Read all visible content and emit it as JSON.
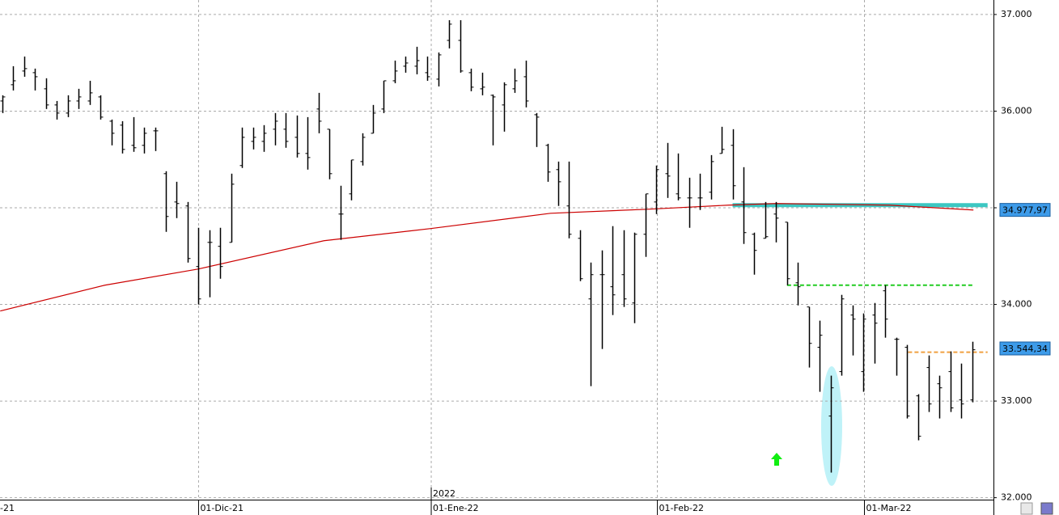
{
  "chart_data": {
    "type": "ohlc",
    "color": "#000000",
    "xlim": [
      -0.22,
      90.94
    ],
    "ylim": [
      31980,
      37150
    ],
    "yticks": [
      {
        "value": 32000,
        "label": "32.000"
      },
      {
        "value": 33000,
        "label": "33.000"
      },
      {
        "value": 34000,
        "label": "34.000"
      },
      {
        "value": 35000,
        "label": "35.000"
      },
      {
        "value": 36000,
        "label": "36.000"
      },
      {
        "value": 37000,
        "label": "37.000"
      }
    ],
    "xticks": [
      {
        "value": -0.4,
        "label": "-21"
      },
      {
        "value": 18,
        "label": "01-Dic-21"
      },
      {
        "value": 39.35,
        "label": "01-Ene-22"
      },
      {
        "value": 60.1,
        "label": "01-Feb-22"
      },
      {
        "value": 79.1,
        "label": "01-Mar-22"
      }
    ],
    "x_group_labels": [
      {
        "value": 39.35,
        "label": "2022"
      }
    ],
    "grid": true,
    "open": [
      36105,
      36273,
      36415,
      36398,
      36231,
      36064,
      35980,
      36105,
      36105,
      36147,
      35896,
      35855,
      35646,
      35646,
      35796,
      35353,
      35060,
      35019,
      34392,
      34642,
      34601,
      34642,
      35437,
      35687,
      35687,
      35813,
      35813,
      35729,
      35562,
      36022,
      35813,
      34935,
      35144,
      35478,
      35771,
      36022,
      36314,
      36465,
      36465,
      36398,
      36331,
      36732,
      36732,
      36398,
      36231,
      36164,
      36064,
      36231,
      36356,
      35963,
      35646,
      35395,
      35019,
      34684,
      34057,
      34308,
      34183,
      34308,
      34015,
      34726,
      35060,
      35353,
      35144,
      35102,
      35102,
      35161,
      35562,
      35646,
      35060,
      34726,
      34684,
      34935,
      34851,
      34224,
      33974,
      33556,
      32845,
      33305,
      33890,
      33305,
      33890,
      34141,
      33639,
      33556,
      33054,
      33347,
      33179,
      33305,
      33012,
      33012
    ],
    "high": [
      36164,
      36465,
      36565,
      36440,
      36340,
      36105,
      36164,
      36231,
      36314,
      36164,
      35913,
      35896,
      35938,
      35830,
      35830,
      35378,
      35269,
      35060,
      34793,
      34768,
      34793,
      35353,
      35830,
      35830,
      35855,
      35980,
      35980,
      35955,
      35938,
      36189,
      35813,
      35228,
      35495,
      35771,
      36064,
      36314,
      36523,
      36565,
      36666,
      36565,
      36607,
      36941,
      36941,
      36440,
      36398,
      36172,
      36298,
      36440,
      36523,
      35980,
      35662,
      35478,
      35478,
      34768,
      34433,
      34559,
      34810,
      34768,
      34743,
      35144,
      35437,
      35671,
      35562,
      35311,
      35353,
      35545,
      35838,
      35813,
      35420,
      34743,
      35060,
      35060,
      34851,
      34433,
      33974,
      33832,
      33263,
      34099,
      33990,
      33907,
      34015,
      34199,
      33656,
      33581,
      33071,
      33472,
      33263,
      33514,
      33388,
      33614
    ],
    "low": [
      35980,
      36214,
      36356,
      36214,
      36022,
      35913,
      35938,
      36022,
      36064,
      35913,
      35646,
      35562,
      35579,
      35562,
      35587,
      34751,
      34893,
      34433,
      33999,
      34074,
      34266,
      34642,
      35412,
      35604,
      35579,
      35646,
      35621,
      35520,
      35395,
      35771,
      35295,
      34668,
      35077,
      35437,
      35771,
      35980,
      36289,
      36398,
      36381,
      36314,
      36256,
      36649,
      36398,
      36206,
      36164,
      35646,
      35788,
      36189,
      36039,
      35629,
      35269,
      35019,
      34684,
      34241,
      33154,
      33539,
      33890,
      33974,
      33806,
      34492,
      34935,
      35102,
      35077,
      34793,
      34977,
      35086,
      35562,
      35086,
      34626,
      34308,
      34684,
      34642,
      34199,
      33990,
      33347,
      33096,
      32260,
      33263,
      33472,
      33096,
      33388,
      33656,
      33263,
      32820,
      32594,
      32887,
      32820,
      32887,
      32820,
      32987
    ],
    "close": [
      36147,
      36314,
      36440,
      36356,
      36064,
      35980,
      36105,
      36147,
      36189,
      35938,
      35771,
      35604,
      35621,
      35771,
      35796,
      34910,
      35044,
      34475,
      34057,
      34642,
      34392,
      35244,
      35729,
      35729,
      35771,
      35896,
      35687,
      35562,
      35520,
      35896,
      35353,
      34935,
      35495,
      35729,
      35980,
      36314,
      36415,
      36498,
      36523,
      36356,
      36582,
      36900,
      36415,
      36248,
      36248,
      36147,
      36273,
      36314,
      36105,
      35938,
      35370,
      35269,
      34726,
      34266,
      34308,
      34308,
      34099,
      34057,
      34726,
      35144,
      35395,
      35328,
      35102,
      35102,
      35102,
      35478,
      35604,
      35228,
      34743,
      34559,
      34701,
      34893,
      34266,
      34183,
      33597,
      33681,
      33137,
      34057,
      33848,
      33848,
      33806,
      33848,
      33639,
      32845,
      32636,
      32970,
      33137,
      32929,
      32970,
      33531
    ],
    "moving_average": {
      "color": "#cc0000",
      "x": [
        -0.2,
        9.4,
        18,
        29.5,
        39.3,
        50.3,
        59.2,
        66.6,
        71,
        81.4,
        89.1
      ],
      "values": [
        33932,
        34199,
        34367,
        34659,
        34785,
        34943,
        34985,
        35027,
        35044,
        35027,
        34977
      ]
    },
    "levels": [
      {
        "value": 35027,
        "x": [
          67,
          90.4
        ],
        "color": "#3cc7c2",
        "style": "solid"
      },
      {
        "value": 34199,
        "x": [
          72,
          89.1
        ],
        "color": "#22cc22",
        "style": "dashed"
      },
      {
        "value": 33506,
        "x": [
          83.1,
          90.4
        ],
        "color": "#f0a040",
        "style": "dashed"
      }
    ],
    "price_labels": [
      {
        "value": 34977.97,
        "label": "34.977,97",
        "color": "#3d9be9"
      },
      {
        "value": 33544.34,
        "label": "33.544,34",
        "color": "#3d9be9"
      }
    ]
  }
}
